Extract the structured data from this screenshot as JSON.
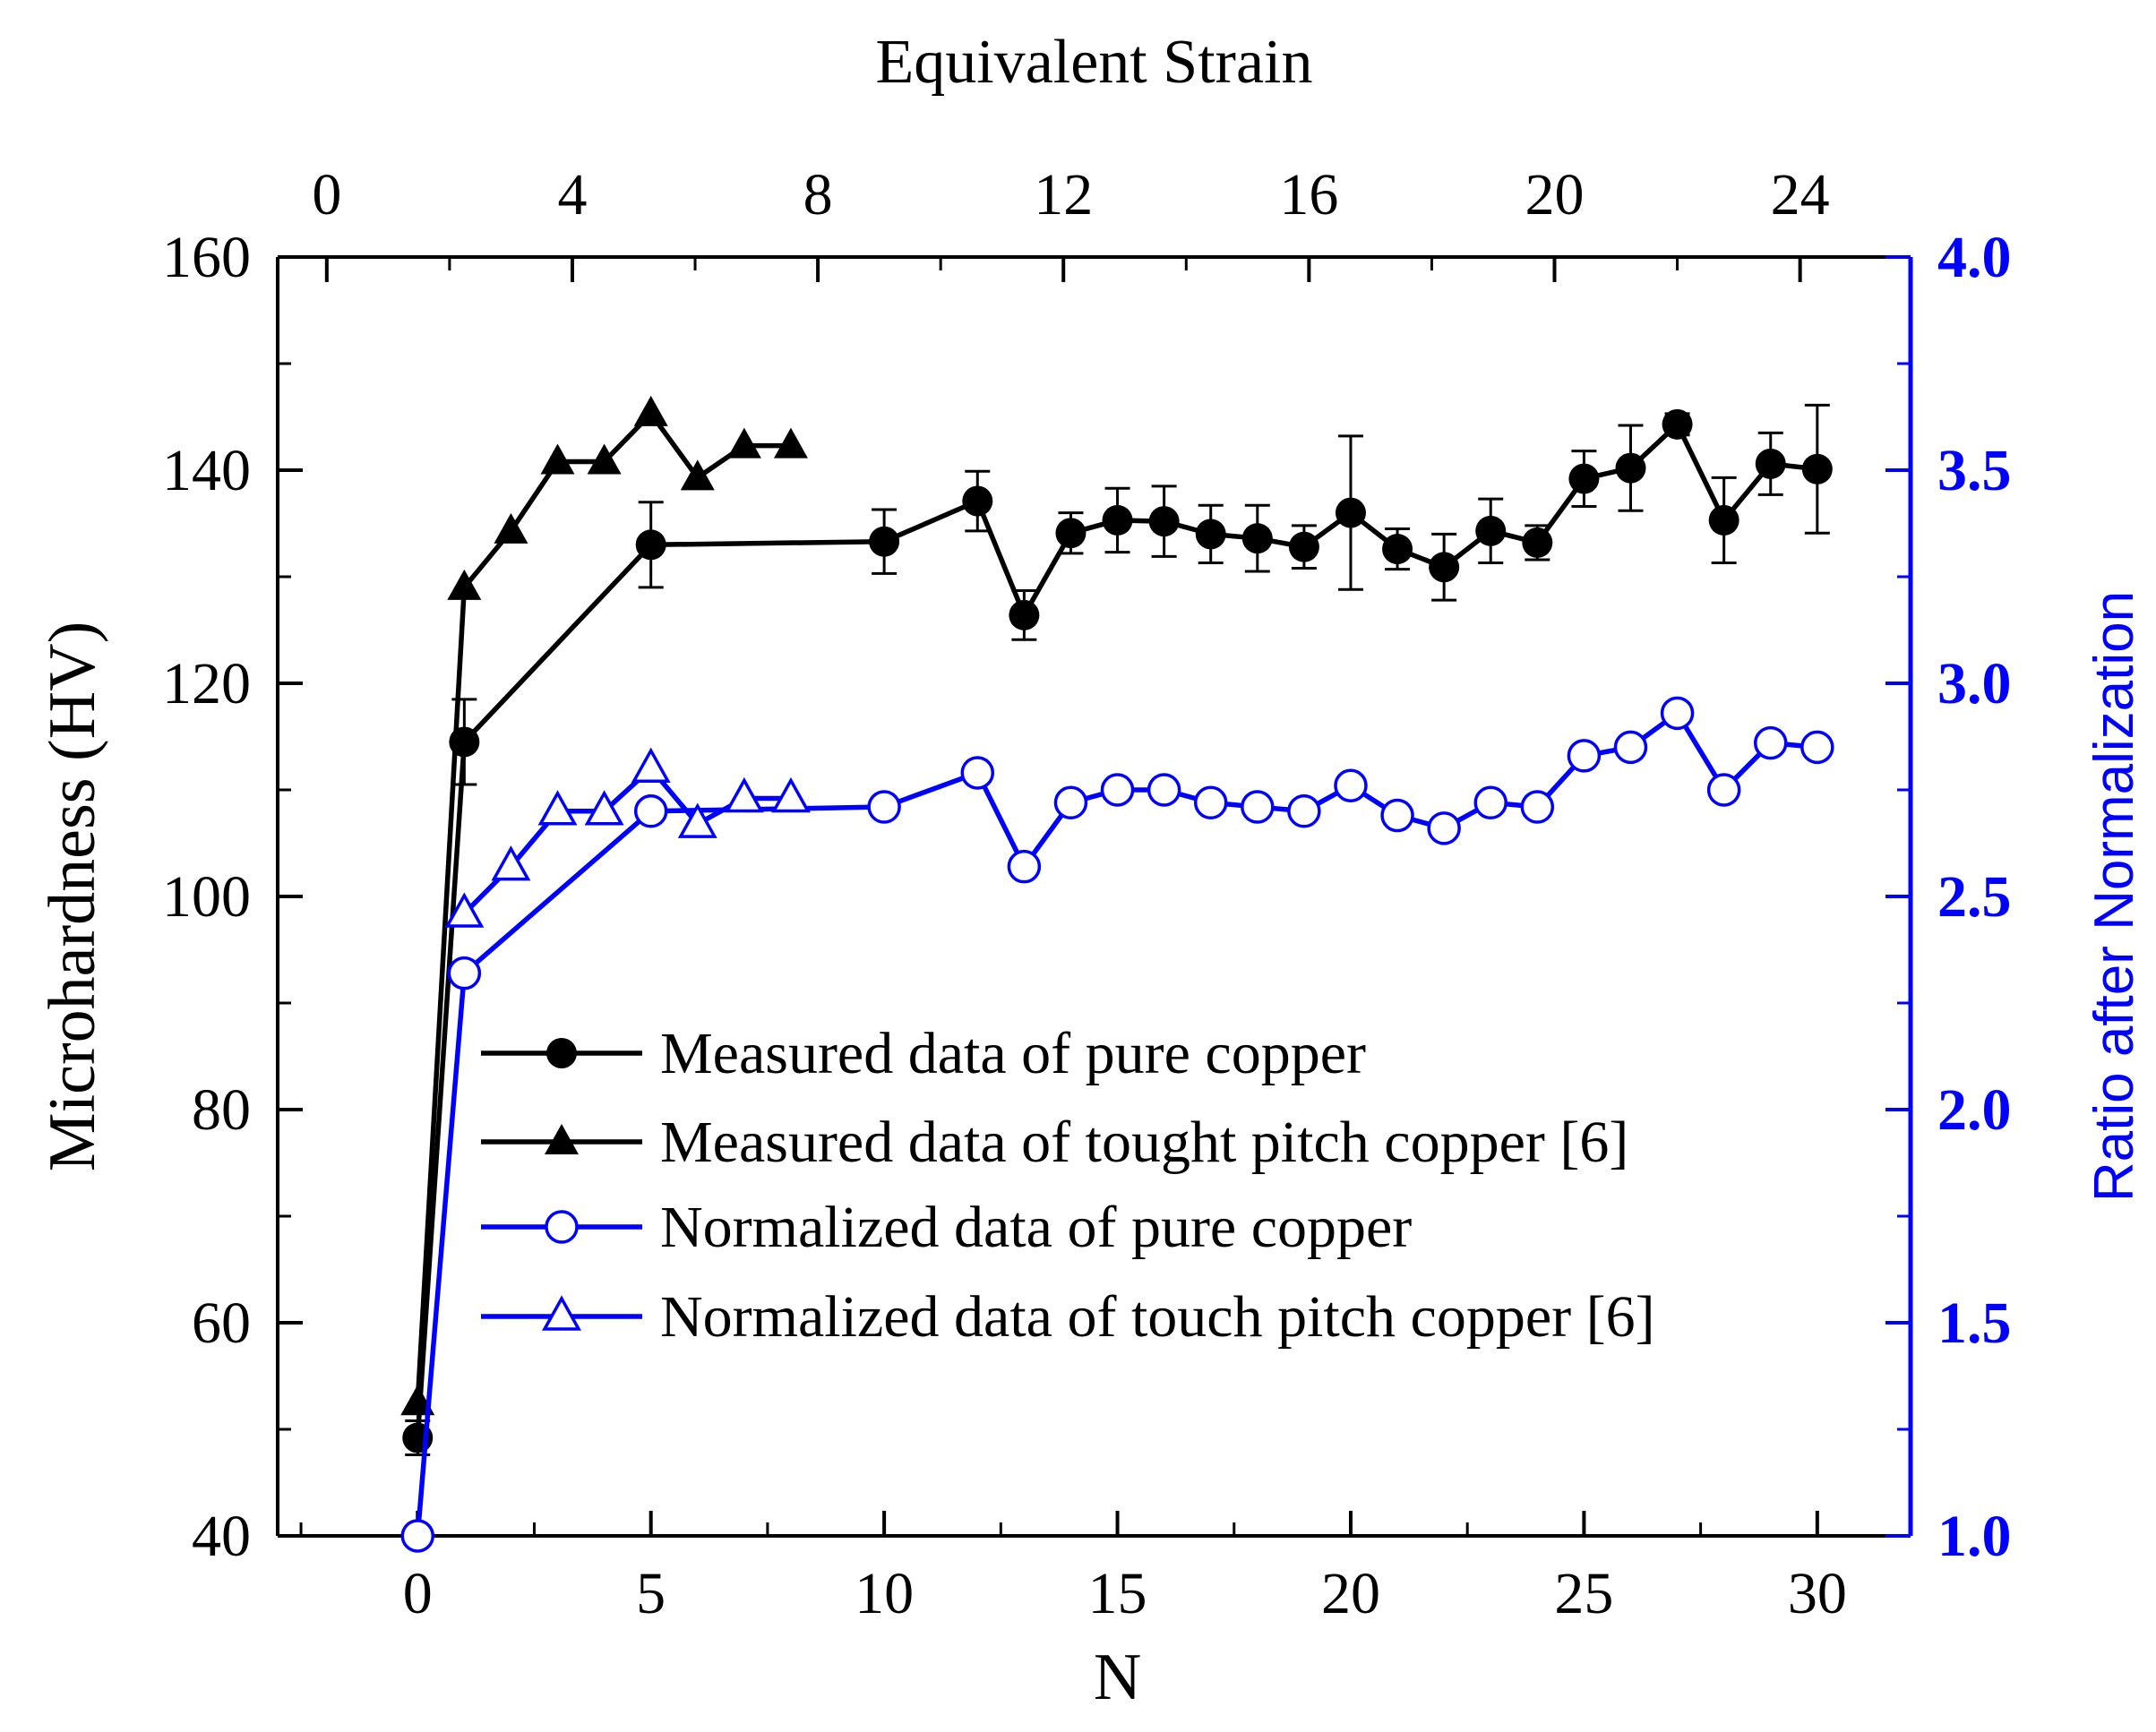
{
  "chart_data": {
    "type": "line",
    "xlabel": "N",
    "x2label": "Equivalent Strain",
    "ylabel": "Microhardness (HV)",
    "y2label": "Ratio after Normalization",
    "xlim": [
      -3,
      32
    ],
    "ylim": [
      40,
      160
    ],
    "y2lim": [
      1.0,
      4.0
    ],
    "x2lim": [
      -0.8,
      25.8
    ],
    "xticks": [
      0,
      5,
      10,
      15,
      20,
      25,
      30
    ],
    "yticks": [
      40,
      60,
      80,
      100,
      120,
      140,
      160
    ],
    "y2ticks": [
      "1.0",
      "1.5",
      "2.0",
      "2.5",
      "3.0",
      "3.5",
      "4.0"
    ],
    "x2ticks": [
      0,
      4,
      8,
      12,
      16,
      20,
      24
    ],
    "colors": {
      "black": "#000000",
      "blue": "#0000ff"
    },
    "series": [
      {
        "name": "Measured data of pure copper",
        "axis": "left",
        "marker": "filled-circle",
        "color": "#000000",
        "x": [
          0,
          1,
          5,
          10,
          12,
          13,
          14,
          15,
          16,
          17,
          18,
          19,
          20,
          21,
          22,
          23,
          24,
          25,
          26,
          27,
          28,
          29,
          30
        ],
        "values": [
          49.2,
          114.5,
          133,
          133.3,
          137.1,
          126.4,
          134.1,
          135.3,
          135.2,
          134,
          133.6,
          132.8,
          136,
          132.6,
          130.9,
          134.3,
          133.2,
          139.2,
          140.2,
          144.3,
          135.3,
          140.6,
          140.1
        ],
        "errors": [
          1.6,
          4,
          4,
          3,
          2.8,
          2.3,
          1.9,
          3,
          3.3,
          2.7,
          3.1,
          2,
          7.2,
          1.9,
          3.1,
          3,
          1.6,
          2.6,
          4,
          1,
          4,
          2.9,
          6
        ]
      },
      {
        "name": "Measured data of tought pitch copper [6]",
        "axis": "left",
        "marker": "filled-triangle",
        "color": "#000000",
        "x": [
          0,
          1,
          2,
          3,
          4,
          5,
          6,
          7,
          8
        ],
        "values": [
          52.5,
          129,
          134.3,
          140.8,
          140.8,
          145.3,
          139.3,
          142.3,
          142.3
        ]
      },
      {
        "name": "Normalized data of pure copper",
        "axis": "right",
        "marker": "open-circle",
        "color": "#0000ff",
        "x": [
          0,
          1,
          5,
          10,
          12,
          13,
          14,
          15,
          16,
          17,
          18,
          19,
          20,
          21,
          22,
          23,
          24,
          25,
          26,
          27,
          28,
          29,
          30
        ],
        "values": [
          1.0,
          2.32,
          2.7,
          2.71,
          2.79,
          2.57,
          2.72,
          2.75,
          2.75,
          2.72,
          2.71,
          2.7,
          2.76,
          2.69,
          2.66,
          2.72,
          2.71,
          2.83,
          2.85,
          2.93,
          2.75,
          2.86,
          2.85
        ]
      },
      {
        "name": "Normalized data of touch pitch copper [6]",
        "axis": "right",
        "marker": "open-triangle",
        "color": "#0000ff",
        "x": [
          1,
          2,
          3,
          4,
          5,
          6,
          7,
          8
        ],
        "values": [
          2.46,
          2.57,
          2.7,
          2.7,
          2.8,
          2.67,
          2.73,
          2.73
        ]
      }
    ]
  }
}
